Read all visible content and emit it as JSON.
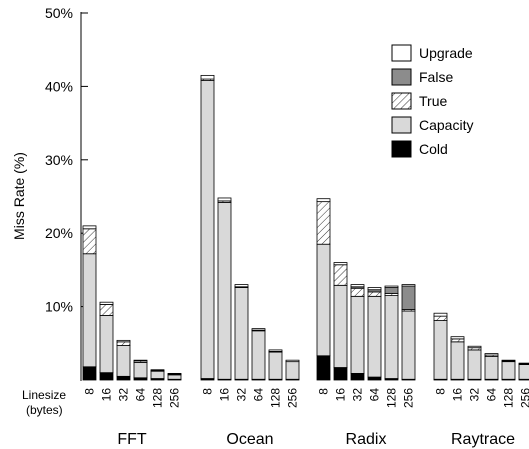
{
  "chart_data": {
    "type": "bar",
    "stacked": true,
    "ylabel": "Miss Rate (%)",
    "ylim": [
      0,
      50
    ],
    "yticks": [
      "10%",
      "20%",
      "30%",
      "40%",
      "50%"
    ],
    "ytick_values": [
      10,
      20,
      30,
      40,
      50
    ],
    "linesize_label": [
      "Linesize",
      "(bytes)"
    ],
    "legend_position": "top-right",
    "series": [
      {
        "name": "Cold",
        "key": "cold",
        "fill": "#000000"
      },
      {
        "name": "Capacity",
        "key": "capacity",
        "fill": "#d9d9d9"
      },
      {
        "name": "True",
        "key": "true",
        "fill": "hatch"
      },
      {
        "name": "False",
        "key": "false",
        "fill": "#8c8c8c"
      },
      {
        "name": "Upgrade",
        "key": "upgrade",
        "fill": "#ffffff"
      }
    ],
    "legend_order": [
      "Upgrade",
      "False",
      "True",
      "Capacity",
      "Cold"
    ],
    "groups": [
      {
        "name": "FFT",
        "bars": [
          {
            "linesize": "8",
            "cold": 1.8,
            "capacity": 15.4,
            "true": 3.4,
            "false": 0.0,
            "upgrade": 0.4
          },
          {
            "linesize": "16",
            "cold": 1.0,
            "capacity": 7.8,
            "true": 1.5,
            "false": 0.0,
            "upgrade": 0.3
          },
          {
            "linesize": "32",
            "cold": 0.5,
            "capacity": 4.2,
            "true": 0.5,
            "false": 0.0,
            "upgrade": 0.2
          },
          {
            "linesize": "64",
            "cold": 0.3,
            "capacity": 2.1,
            "true": 0.2,
            "false": 0.0,
            "upgrade": 0.1
          },
          {
            "linesize": "128",
            "cold": 0.2,
            "capacity": 1.0,
            "true": 0.1,
            "false": 0.0,
            "upgrade": 0.1
          },
          {
            "linesize": "256",
            "cold": 0.1,
            "capacity": 0.6,
            "true": 0.1,
            "false": 0.0,
            "upgrade": 0.1
          }
        ]
      },
      {
        "name": "Ocean",
        "bars": [
          {
            "linesize": "8",
            "cold": 0.2,
            "capacity": 40.6,
            "true": 0.2,
            "false": 0.0,
            "upgrade": 0.5
          },
          {
            "linesize": "16",
            "cold": 0.1,
            "capacity": 24.1,
            "true": 0.2,
            "false": 0.0,
            "upgrade": 0.4
          },
          {
            "linesize": "32",
            "cold": 0.1,
            "capacity": 12.5,
            "true": 0.1,
            "false": 0.0,
            "upgrade": 0.3
          },
          {
            "linesize": "64",
            "cold": 0.1,
            "capacity": 6.6,
            "true": 0.1,
            "false": 0.0,
            "upgrade": 0.2
          },
          {
            "linesize": "128",
            "cold": 0.1,
            "capacity": 3.7,
            "true": 0.1,
            "false": 0.0,
            "upgrade": 0.2
          },
          {
            "linesize": "256",
            "cold": 0.1,
            "capacity": 2.4,
            "true": 0.0,
            "false": 0.0,
            "upgrade": 0.2
          }
        ]
      },
      {
        "name": "Radix",
        "bars": [
          {
            "linesize": "8",
            "cold": 3.3,
            "capacity": 15.2,
            "true": 5.8,
            "false": 0.0,
            "upgrade": 0.4
          },
          {
            "linesize": "16",
            "cold": 1.7,
            "capacity": 11.2,
            "true": 2.8,
            "false": 0.0,
            "upgrade": 0.3
          },
          {
            "linesize": "32",
            "cold": 0.9,
            "capacity": 10.5,
            "true": 1.1,
            "false": 0.2,
            "upgrade": 0.3
          },
          {
            "linesize": "64",
            "cold": 0.4,
            "capacity": 11.0,
            "true": 0.6,
            "false": 0.3,
            "upgrade": 0.3
          },
          {
            "linesize": "128",
            "cold": 0.2,
            "capacity": 11.3,
            "true": 0.3,
            "false": 0.8,
            "upgrade": 0.2
          },
          {
            "linesize": "256",
            "cold": 0.1,
            "capacity": 9.3,
            "true": 0.2,
            "false": 3.2,
            "upgrade": 0.2
          }
        ]
      },
      {
        "name": "Raytrace",
        "bars": [
          {
            "linesize": "8",
            "cold": 0.1,
            "capacity": 8.0,
            "true": 0.6,
            "false": 0.0,
            "upgrade": 0.4
          },
          {
            "linesize": "16",
            "cold": 0.1,
            "capacity": 5.1,
            "true": 0.4,
            "false": 0.0,
            "upgrade": 0.3
          },
          {
            "linesize": "32",
            "cold": 0.1,
            "capacity": 4.0,
            "true": 0.3,
            "false": 0.0,
            "upgrade": 0.2
          },
          {
            "linesize": "64",
            "cold": 0.1,
            "capacity": 3.1,
            "true": 0.2,
            "false": 0.0,
            "upgrade": 0.2
          },
          {
            "linesize": "128",
            "cold": 0.1,
            "capacity": 2.4,
            "true": 0.1,
            "false": 0.0,
            "upgrade": 0.1
          },
          {
            "linesize": "256",
            "cold": 0.1,
            "capacity": 2.0,
            "true": 0.1,
            "false": 0.0,
            "upgrade": 0.1
          }
        ]
      }
    ]
  }
}
